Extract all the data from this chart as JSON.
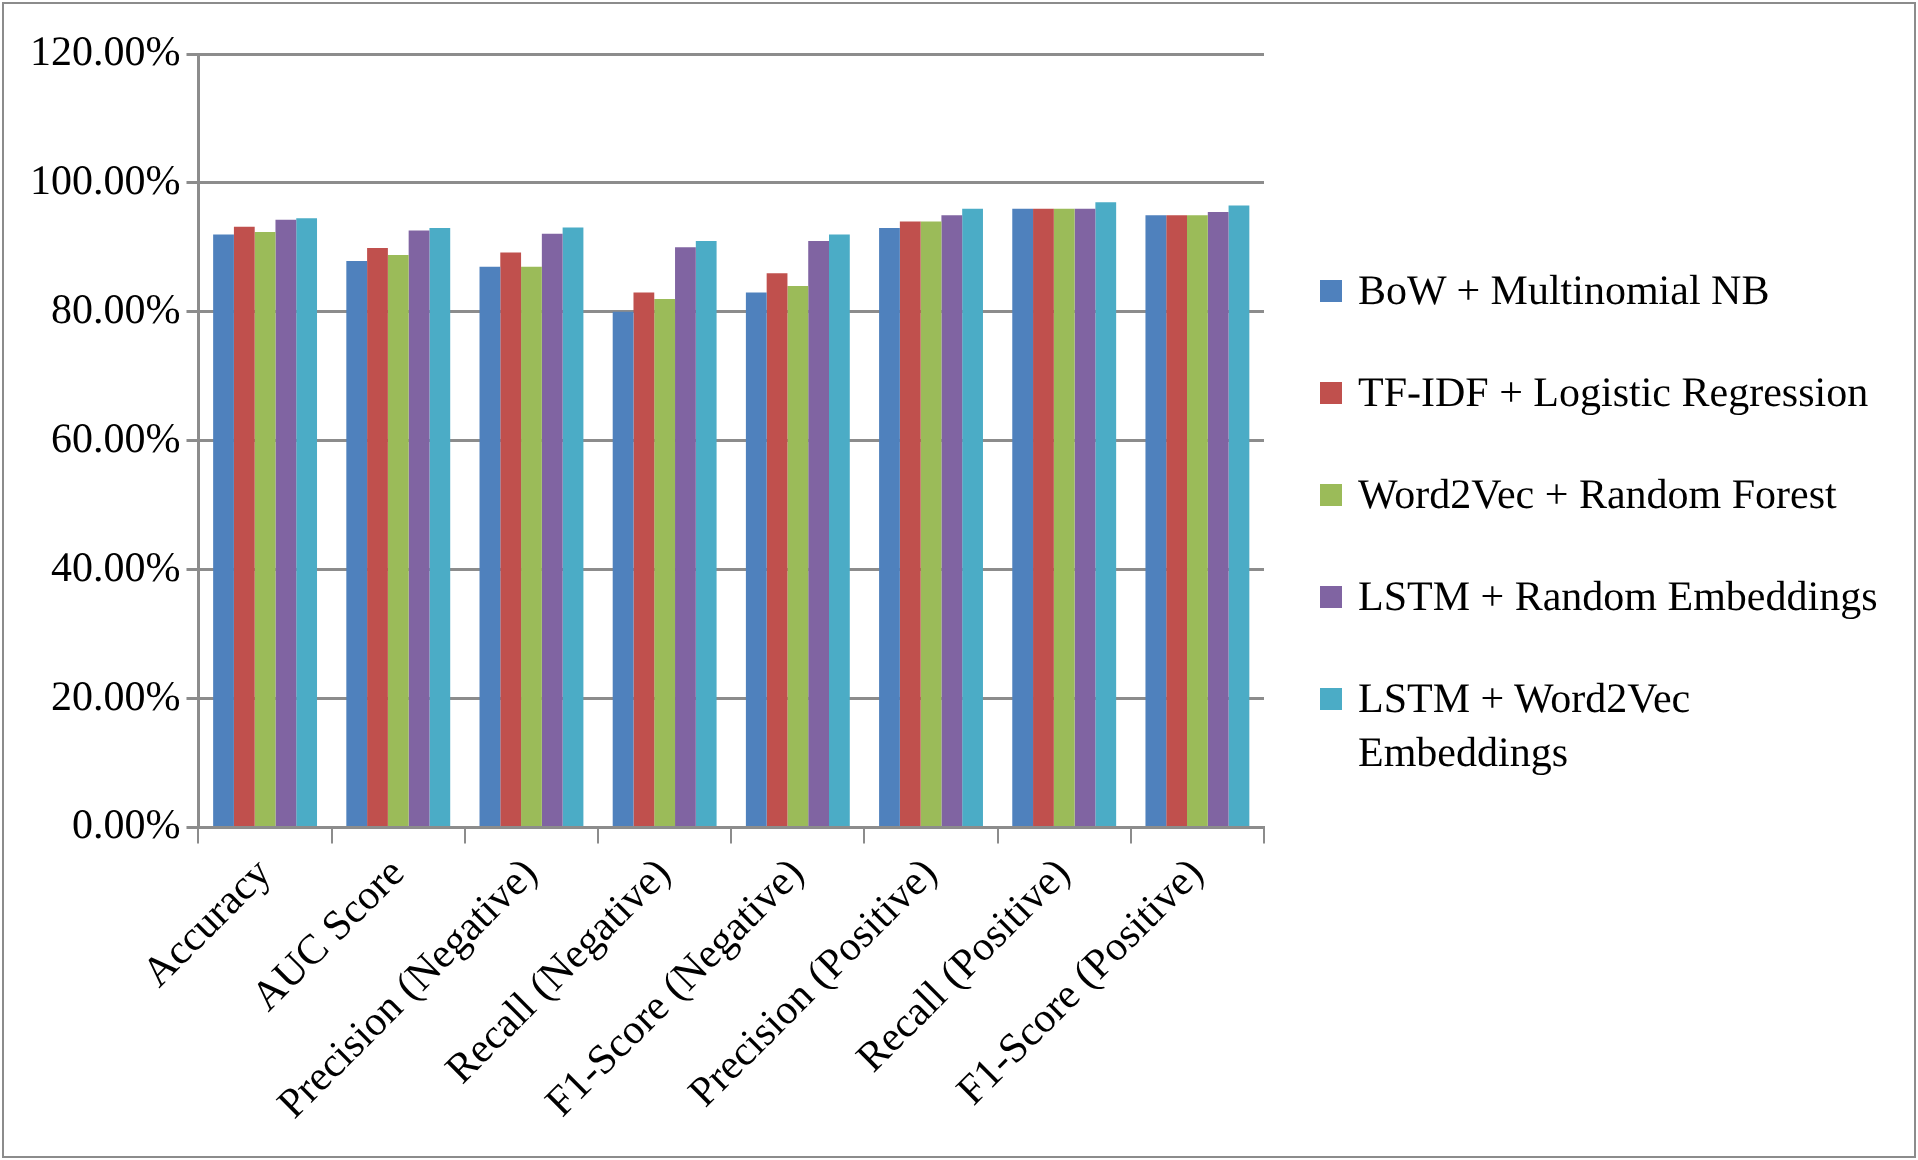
{
  "chart_data": {
    "type": "bar",
    "categories": [
      "Accuracy",
      "AUC Score",
      "Precision (Negative)",
      "Recall (Negative)",
      "F1-Score (Negative)",
      "Precision (Positive)",
      "Recall (Positive)",
      "F1-Score (Positive)"
    ],
    "series": [
      {
        "name": "BoW + Multinomial NB",
        "color": "#4f81bd",
        "values": [
          92,
          87.9,
          87,
          80,
          83,
          93,
          96,
          95
        ]
      },
      {
        "name": "TF-IDF + Logistic Regression",
        "color": "#c0504d",
        "values": [
          93.2,
          89.9,
          89.2,
          83,
          86,
          94,
          96,
          95
        ]
      },
      {
        "name": "Word2Vec + Random Forest",
        "color": "#9bbb59",
        "values": [
          92.4,
          88.8,
          87,
          82,
          84,
          94,
          96,
          95
        ]
      },
      {
        "name": "LSTM + Random Embeddings",
        "color": "#8064a2",
        "values": [
          94.3,
          92.6,
          92.1,
          90,
          91,
          95,
          96,
          95.5
        ]
      },
      {
        "name": "LSTM + Word2Vec Embeddings",
        "color": "#4bacc6",
        "values": [
          94.5,
          93,
          93.1,
          91,
          92,
          96,
          97,
          96.5
        ]
      }
    ],
    "ylim": [
      0,
      120
    ],
    "yticks": [
      {
        "value": 0,
        "label": "0.00%"
      },
      {
        "value": 20,
        "label": "20.00%"
      },
      {
        "value": 40,
        "label": "40.00%"
      },
      {
        "value": 60,
        "label": "60.00%"
      },
      {
        "value": 80,
        "label": "80.00%"
      },
      {
        "value": 100,
        "label": "100.00%"
      },
      {
        "value": 120,
        "label": "120.00%"
      }
    ],
    "grid": "y",
    "legend": "right"
  }
}
